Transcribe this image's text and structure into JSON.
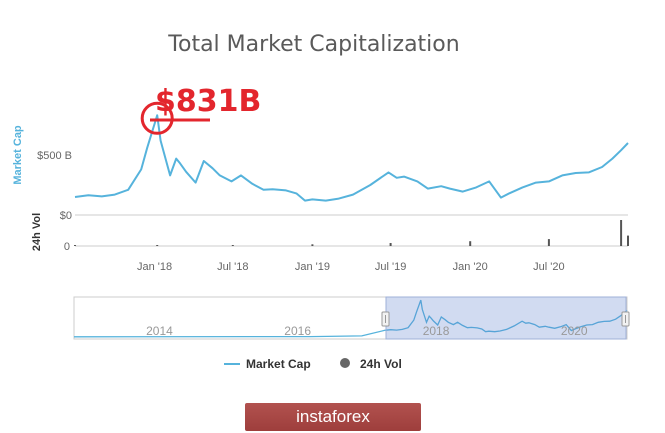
{
  "chart_data": {
    "type": "line",
    "title": "Total Market Capitalization",
    "y_axis_main": {
      "label": "Market Cap",
      "ticks": [
        "$500 B",
        "$0"
      ],
      "tick_values": [
        500,
        0
      ],
      "range": [
        0,
        1000
      ],
      "unit": "billion USD"
    },
    "y_axis_volume": {
      "label": "24h Vol",
      "ticks": [
        "0"
      ]
    },
    "x_ticks": [
      "Jan '18",
      "Jul '18",
      "Jan '19",
      "Jul '19",
      "Jan '20",
      "Jul '20"
    ],
    "x_tick_values": [
      "2018-01-01",
      "2018-07-01",
      "2019-01-01",
      "2019-07-01",
      "2020-01-01",
      "2020-07-01"
    ],
    "x_range": [
      "2017-07-01",
      "2020-12-31"
    ],
    "series": [
      {
        "name": "Market Cap",
        "color": "#56b3dc",
        "x": [
          "2017-07-01",
          "2017-08-01",
          "2017-09-01",
          "2017-10-01",
          "2017-11-01",
          "2017-12-01",
          "2017-12-15",
          "2018-01-07",
          "2018-01-15",
          "2018-02-06",
          "2018-02-20",
          "2018-03-01",
          "2018-03-15",
          "2018-04-06",
          "2018-04-25",
          "2018-05-15",
          "2018-06-01",
          "2018-06-28",
          "2018-07-20",
          "2018-08-15",
          "2018-09-10",
          "2018-10-01",
          "2018-11-01",
          "2018-11-25",
          "2018-12-15",
          "2019-01-01",
          "2019-02-01",
          "2019-03-01",
          "2019-04-05",
          "2019-05-15",
          "2019-06-26",
          "2019-07-15",
          "2019-08-01",
          "2019-09-01",
          "2019-09-25",
          "2019-10-26",
          "2019-11-15",
          "2019-12-15",
          "2020-01-15",
          "2020-02-14",
          "2020-03-12",
          "2020-03-31",
          "2020-05-01",
          "2020-06-01",
          "2020-07-01",
          "2020-08-01",
          "2020-09-01",
          "2020-10-01",
          "2020-11-01",
          "2020-11-25",
          "2020-12-15",
          "2020-12-31"
        ],
        "y": [
          150,
          165,
          155,
          170,
          210,
          380,
          560,
          831,
          620,
          330,
          470,
          430,
          360,
          270,
          450,
          390,
          330,
          280,
          330,
          260,
          210,
          215,
          205,
          180,
          120,
          130,
          120,
          135,
          170,
          250,
          355,
          310,
          320,
          280,
          220,
          240,
          220,
          195,
          230,
          280,
          145,
          180,
          230,
          270,
          280,
          330,
          350,
          355,
          400,
          470,
          540,
          600
        ]
      },
      {
        "name": "24h Vol",
        "color": "#555555",
        "x": [
          "2017-07-01",
          "2018-01-07",
          "2018-07-01",
          "2019-01-01",
          "2019-07-01",
          "2020-01-01",
          "2020-07-01",
          "2020-12-15",
          "2020-12-31"
        ],
        "y": [
          2,
          5,
          10,
          20,
          35,
          55,
          80,
          300,
          120
        ]
      }
    ],
    "navigator": {
      "year_labels": [
        "2014",
        "2016",
        "2018",
        "2020"
      ],
      "selected_range": [
        "2017-07-01",
        "2020-12-31"
      ]
    },
    "legend": {
      "items": [
        "Market Cap",
        "24h Vol"
      ],
      "placement": "bottom-center"
    },
    "annotation": {
      "text": "$831B",
      "target_x": "2018-01-07",
      "target_y": 831,
      "color": "#e3262d"
    },
    "grid": false
  },
  "watermark": {
    "text": "instaforex"
  }
}
